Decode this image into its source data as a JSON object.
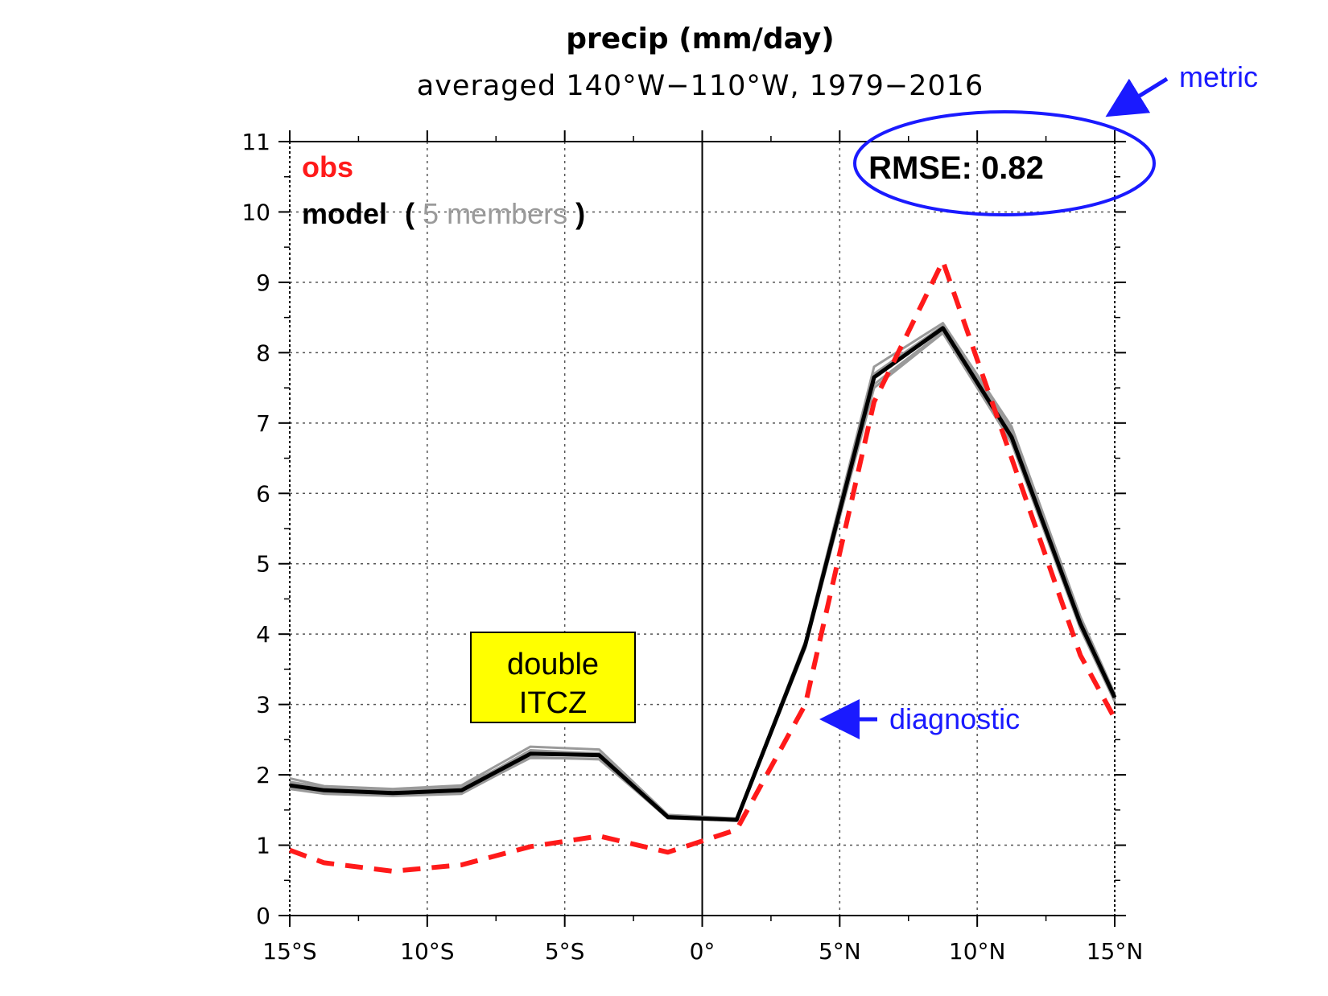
{
  "chart_data": {
    "type": "line",
    "title": "precip (mm/day)",
    "subtitle": "averaged 140°W−110°W, 1979−2016",
    "x_ticks": [
      "15°S",
      "10°S",
      "5°S",
      "0°",
      "5°N",
      "10°N",
      "15°N"
    ],
    "y_ticks": [
      "0",
      "1",
      "2",
      "3",
      "4",
      "5",
      "6",
      "7",
      "8",
      "9",
      "10",
      "11"
    ],
    "xlim": [
      -15,
      15
    ],
    "ylim": [
      0,
      11
    ],
    "grid": true,
    "x": [
      -15,
      -13.75,
      -11.25,
      -8.75,
      -6.25,
      -3.75,
      -1.25,
      1.25,
      3.75,
      6.25,
      8.75,
      11.25,
      13.75,
      15
    ],
    "series": [
      {
        "name": "obs",
        "color": "#ff1a1a",
        "style": "dashed",
        "values": [
          0.93,
          0.75,
          0.63,
          0.72,
          0.98,
          1.13,
          0.9,
          1.22,
          3.0,
          7.3,
          9.3,
          6.5,
          3.7,
          2.8
        ]
      },
      {
        "name": "model",
        "color": "#000000",
        "style": "solid",
        "values": [
          1.85,
          1.78,
          1.74,
          1.78,
          2.3,
          2.28,
          1.4,
          1.36,
          3.85,
          7.65,
          8.35,
          6.8,
          4.15,
          3.1
        ]
      }
    ],
    "members": [
      [
        1.95,
        1.84,
        1.8,
        1.85,
        2.4,
        2.36,
        1.43,
        1.38,
        3.9,
        7.8,
        8.42,
        6.95,
        4.25,
        3.15
      ],
      [
        1.82,
        1.74,
        1.71,
        1.74,
        2.24,
        2.23,
        1.38,
        1.35,
        3.8,
        7.55,
        8.3,
        6.75,
        4.1,
        3.05
      ],
      [
        1.88,
        1.8,
        1.76,
        1.8,
        2.35,
        2.3,
        1.41,
        1.37,
        3.88,
        7.7,
        8.38,
        6.85,
        4.2,
        3.12
      ],
      [
        1.8,
        1.73,
        1.7,
        1.73,
        2.25,
        2.22,
        1.39,
        1.35,
        3.82,
        7.5,
        8.28,
        6.72,
        4.08,
        3.04
      ],
      [
        1.9,
        1.82,
        1.78,
        1.83,
        2.32,
        2.31,
        1.42,
        1.37,
        3.86,
        7.68,
        8.36,
        6.9,
        4.18,
        3.1
      ]
    ],
    "member_color": "#9a9a9a",
    "legend": {
      "obs_label": "obs",
      "model_label": "model",
      "paren_open": "(",
      "members_label": "5 members",
      "paren_close": ")"
    },
    "rmse_label": "RMSE: 0.82"
  },
  "annotations": {
    "metric": "metric",
    "diagnostic": "diagnostic",
    "double_itcz_line1": "double",
    "double_itcz_line2": "ITCZ",
    "annotation_color": "#1a1aff",
    "box_fill": "#ffff00"
  }
}
